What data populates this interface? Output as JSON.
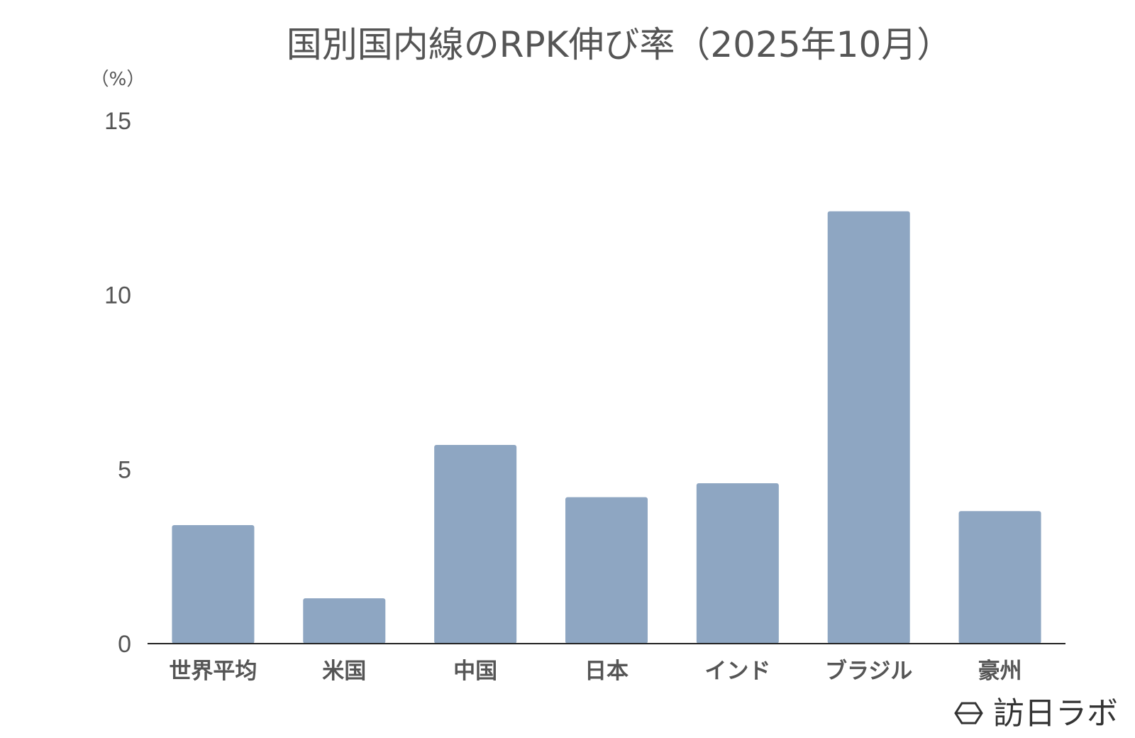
{
  "chart_data": {
    "type": "bar",
    "title": "国別国内線のRPK伸び率（2025年10月）",
    "ylabel": "（%）",
    "xlabel": "",
    "categories": [
      "世界平均",
      "米国",
      "中国",
      "日本",
      "インド",
      "ブラジル",
      "豪州"
    ],
    "values": [
      3.4,
      1.3,
      5.7,
      4.2,
      4.6,
      12.4,
      3.8
    ],
    "ylim": [
      0,
      15
    ],
    "yticks": [
      "0",
      "5",
      "10",
      "15"
    ],
    "bar_color": "#8ea6c2",
    "axis_color": "#222222",
    "grid": false,
    "legend": "none"
  },
  "branding": {
    "name": "訪日ラボ",
    "icon": "hexagon-logo-icon"
  }
}
